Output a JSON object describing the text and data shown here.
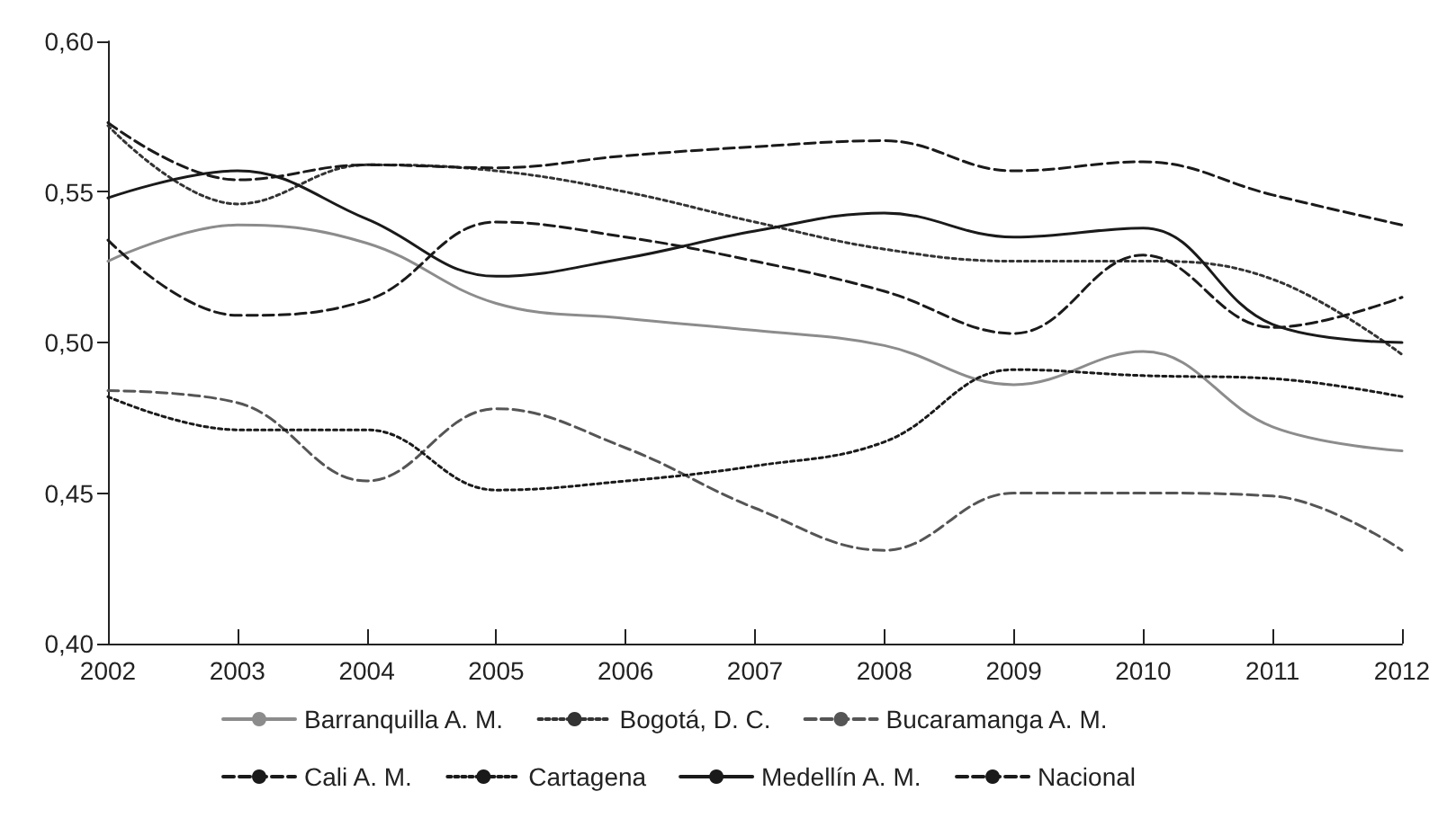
{
  "chart_data": {
    "type": "line",
    "x": [
      2002,
      2003,
      2004,
      2005,
      2006,
      2007,
      2008,
      2009,
      2010,
      2011,
      2012
    ],
    "xlim": [
      2002,
      2012
    ],
    "xticks": [
      2002,
      2003,
      2004,
      2005,
      2006,
      2007,
      2008,
      2009,
      2010,
      2011,
      2012
    ],
    "ylim": [
      0.4,
      0.6
    ],
    "yticks": [
      {
        "value": 0.4,
        "label": "0,40"
      },
      {
        "value": 0.45,
        "label": "0,45"
      },
      {
        "value": 0.5,
        "label": "0,50"
      },
      {
        "value": 0.55,
        "label": "0,55"
      },
      {
        "value": 0.6,
        "label": "0,60"
      }
    ],
    "grid": false,
    "legend": "bottom",
    "marker": "none",
    "series": [
      {
        "name": "Barranquilla A. M.",
        "color": "#8c8c8c",
        "line_style": "solid",
        "values": [
          0.527,
          0.539,
          0.533,
          0.513,
          0.508,
          0.504,
          0.499,
          0.486,
          0.497,
          0.472,
          0.464
        ]
      },
      {
        "name": "Bogotá, D. C.",
        "color": "#333333",
        "line_style": "dotted",
        "values": [
          0.572,
          0.546,
          0.559,
          0.557,
          0.55,
          0.54,
          0.531,
          0.527,
          0.527,
          0.521,
          0.496
        ]
      },
      {
        "name": "Bucaramanga A. M.",
        "color": "#555555",
        "line_style": "dashed",
        "values": [
          0.484,
          0.48,
          0.454,
          0.478,
          0.465,
          0.445,
          0.431,
          0.45,
          0.45,
          0.449,
          0.431
        ]
      },
      {
        "name": "Cali A. M.",
        "color": "#1a1a1a",
        "line_style": "dashed",
        "values": [
          0.534,
          0.509,
          0.514,
          0.54,
          0.535,
          0.527,
          0.517,
          0.503,
          0.529,
          0.505,
          0.515
        ]
      },
      {
        "name": "Cartagena",
        "color": "#1a1a1a",
        "line_style": "dotted",
        "values": [
          0.482,
          0.471,
          0.471,
          0.451,
          0.454,
          0.459,
          0.467,
          0.491,
          0.489,
          0.488,
          0.482
        ]
      },
      {
        "name": "Medellín A. M.",
        "color": "#1a1a1a",
        "line_style": "solid",
        "values": [
          0.548,
          0.557,
          0.541,
          0.522,
          0.528,
          0.537,
          0.543,
          0.535,
          0.538,
          0.506,
          0.5
        ]
      },
      {
        "name": "Nacional",
        "color": "#1a1a1a",
        "line_style": "dashed",
        "values": [
          0.573,
          0.554,
          0.559,
          0.558,
          0.562,
          0.565,
          0.567,
          0.557,
          0.56,
          0.549,
          0.539
        ]
      }
    ]
  }
}
